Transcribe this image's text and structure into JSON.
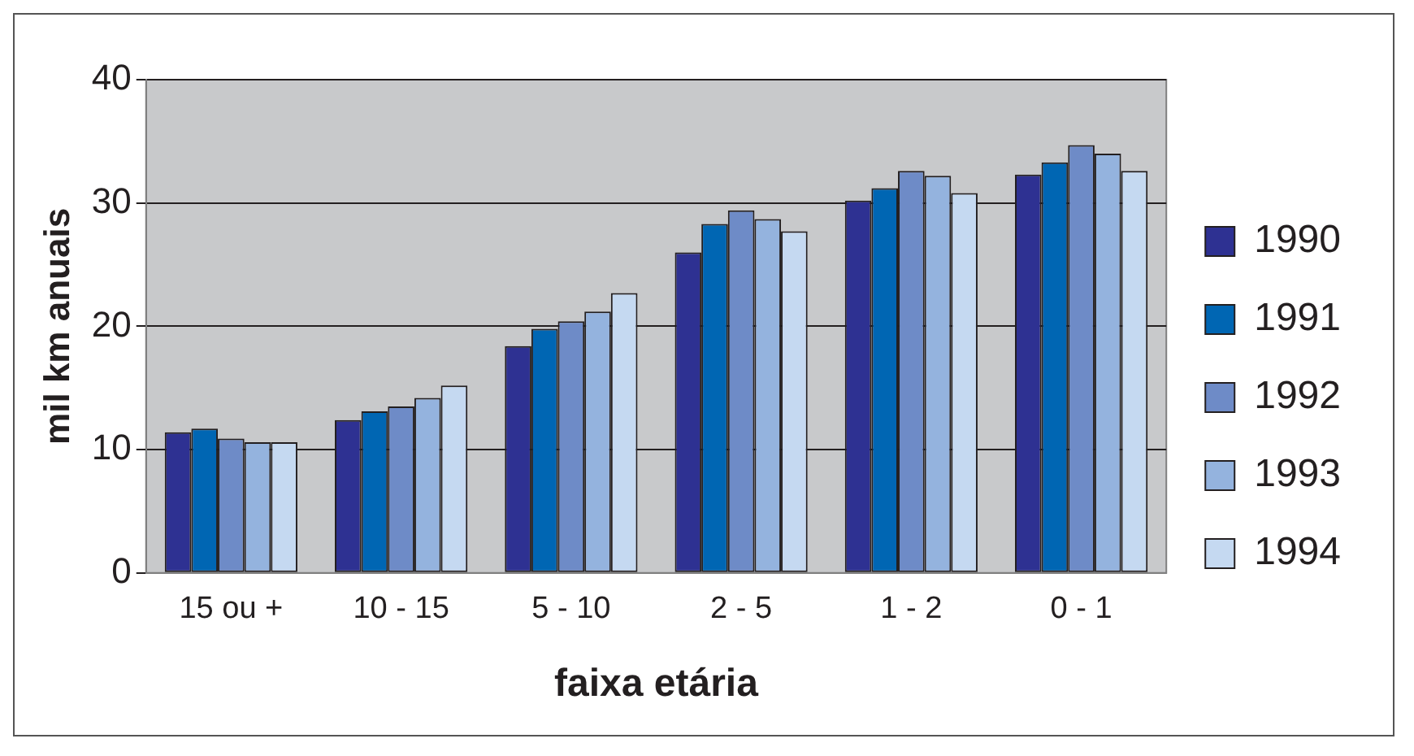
{
  "chart_data": {
    "type": "bar",
    "xlabel": "faixa etária",
    "ylabel": "mil km anuais",
    "categories": [
      "15 ou +",
      "10 - 15",
      "5 - 10",
      "2 - 5",
      "1 - 2",
      "0 - 1"
    ],
    "series": [
      {
        "name": "1990",
        "color": "#2e3192",
        "values": [
          11.4,
          12.4,
          18.4,
          26.0,
          30.2,
          32.3
        ]
      },
      {
        "name": "1991",
        "color": "#0066b3",
        "values": [
          11.7,
          13.1,
          19.8,
          28.3,
          31.2,
          33.3
        ]
      },
      {
        "name": "1992",
        "color": "#6e8bc7",
        "values": [
          10.9,
          13.5,
          20.4,
          29.4,
          32.6,
          34.7
        ]
      },
      {
        "name": "1993",
        "color": "#94b3de",
        "values": [
          10.6,
          14.2,
          21.2,
          28.7,
          32.2,
          34.0
        ]
      },
      {
        "name": "1994",
        "color": "#c5d9f1",
        "values": [
          10.6,
          15.2,
          22.7,
          27.7,
          30.8,
          32.6
        ]
      }
    ],
    "ylim": [
      0,
      40
    ],
    "yticks": [
      0,
      10,
      20,
      30,
      40
    ],
    "grid": "y",
    "legend": "right"
  }
}
